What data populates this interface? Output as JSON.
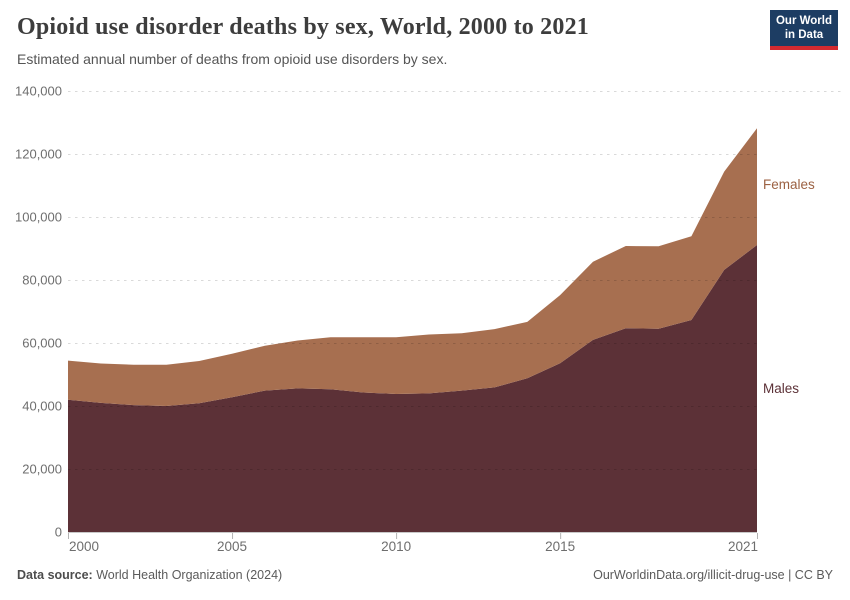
{
  "header": {
    "title": "Opioid use disorder deaths by sex, World, 2000 to 2021",
    "subtitle": "Estimated annual number of deaths from opioid use disorders by sex."
  },
  "logo": {
    "line1": "Our World",
    "line2": "in Data",
    "bg_color": "#1d3d63",
    "accent_color": "#d42a2f"
  },
  "chart_data": {
    "type": "area",
    "stacked": true,
    "title": "Opioid use disorder deaths by sex, World, 2000 to 2021",
    "x": [
      2000,
      2001,
      2002,
      2003,
      2004,
      2005,
      2006,
      2007,
      2008,
      2009,
      2010,
      2011,
      2012,
      2013,
      2014,
      2015,
      2016,
      2017,
      2018,
      2019,
      2020,
      2021
    ],
    "series": [
      {
        "name": "Males",
        "color": "#5c3137",
        "label_color": "#5c3137",
        "values": [
          42000,
          41000,
          40300,
          40000,
          40900,
          42800,
          44900,
          45600,
          45300,
          44300,
          43800,
          44000,
          44900,
          45900,
          48800,
          53600,
          61000,
          64700,
          64500,
          67300,
          83200,
          91100
        ]
      },
      {
        "name": "Females",
        "color": "#a76f50",
        "label_color": "#9c6243",
        "values": [
          12400,
          12500,
          12800,
          13100,
          13400,
          13800,
          14200,
          15200,
          16500,
          17500,
          18000,
          18700,
          18200,
          18500,
          17900,
          21600,
          24800,
          26100,
          26200,
          26600,
          31200,
          37100
        ]
      }
    ],
    "xlabel": "",
    "ylabel": "",
    "ylim": [
      0,
      140000
    ],
    "yticks": [
      0,
      20000,
      40000,
      60000,
      80000,
      100000,
      120000,
      140000
    ],
    "ytick_labels": [
      "0",
      "20,000",
      "40,000",
      "60,000",
      "80,000",
      "100,000",
      "120,000",
      "140,000"
    ],
    "xticks": [
      2000,
      2005,
      2010,
      2015,
      2021
    ],
    "xtick_labels": [
      "2000",
      "2005",
      "2010",
      "2015",
      "2021"
    ],
    "grid": "dashed horizontal",
    "legend_position": "right-edge-labels"
  },
  "footer": {
    "datasource_label": "Data source:",
    "datasource_value": " World Health Organization (2024)",
    "credit": "OurWorldinData.org/illicit-drug-use | CC BY"
  }
}
